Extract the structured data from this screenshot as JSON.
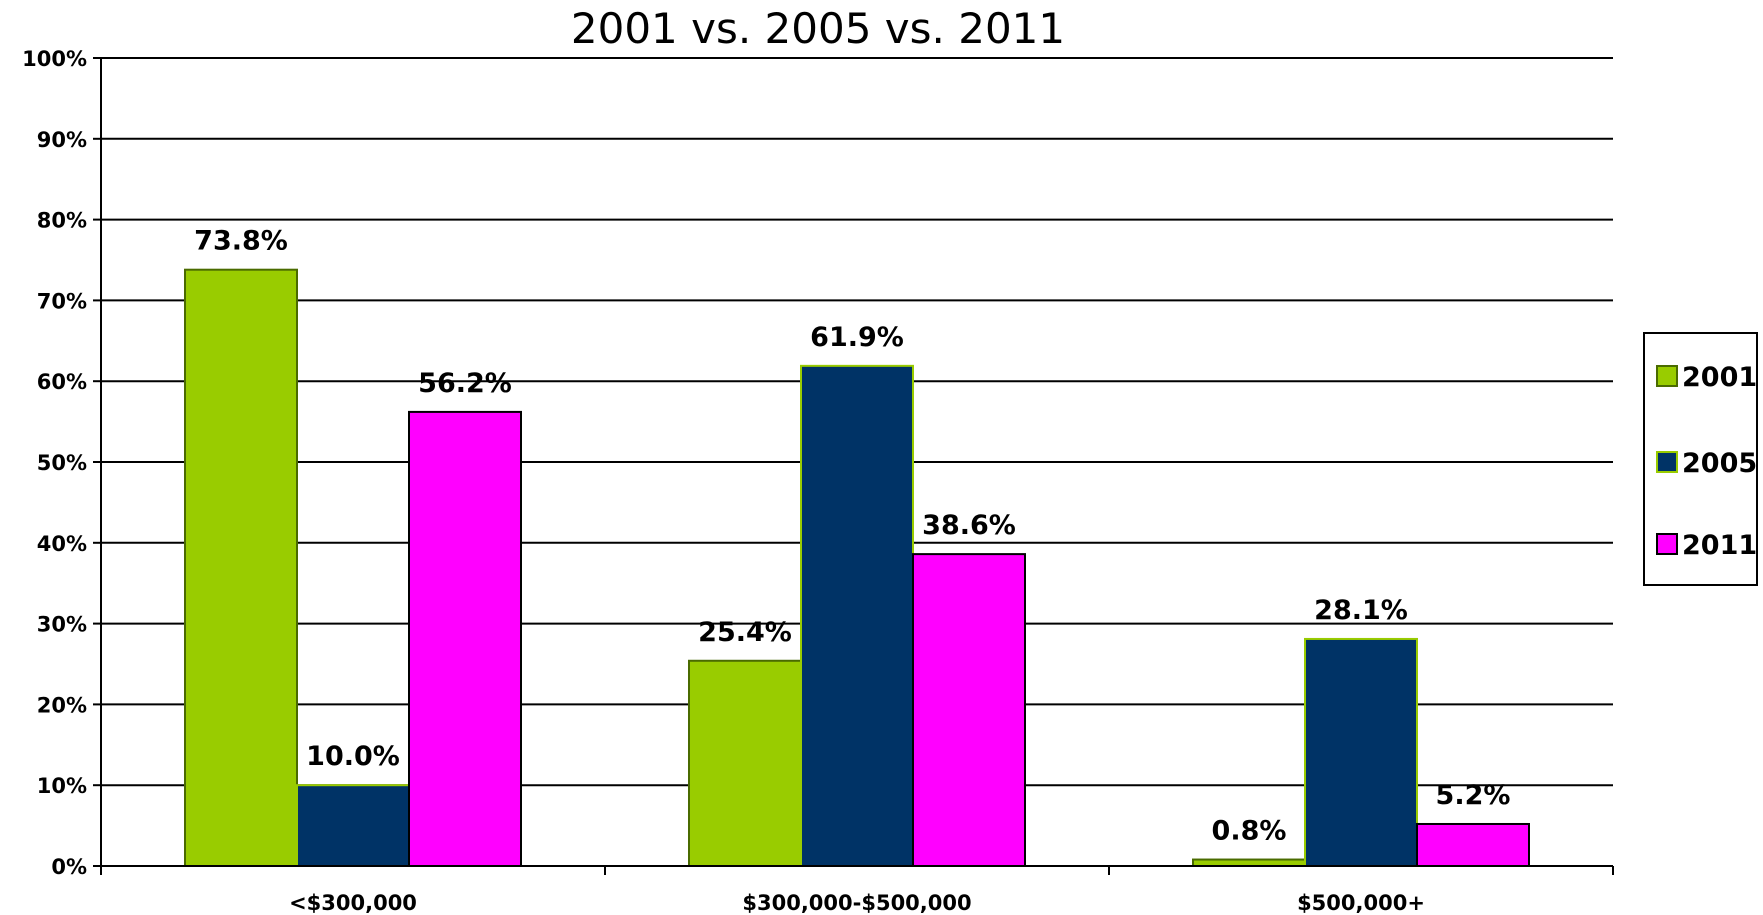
{
  "chart_data": {
    "type": "bar",
    "title": "2001 vs. 2005 vs. 2011",
    "xlabel": "",
    "ylabel": "",
    "ylim": [
      0,
      100
    ],
    "y_ticks": [
      "0%",
      "10%",
      "20%",
      "30%",
      "40%",
      "50%",
      "60%",
      "70%",
      "80%",
      "90%",
      "100%"
    ],
    "categories": [
      "<$300,000",
      "$300,000-$500,000",
      "$500,000+"
    ],
    "series": [
      {
        "name": "2001",
        "values": [
          73.8,
          25.4,
          0.8
        ],
        "labels": [
          "73.8%",
          "25.4%",
          "0.8%"
        ],
        "color": "#99cc00"
      },
      {
        "name": "2005",
        "values": [
          10.0,
          61.9,
          28.1
        ],
        "labels": [
          "10.0%",
          "61.9%",
          "28.1%"
        ],
        "color": "#003366"
      },
      {
        "name": "2011",
        "values": [
          56.2,
          38.6,
          5.2
        ],
        "labels": [
          "56.2%",
          "38.6%",
          "5.2%"
        ],
        "color": "#ff00ff"
      }
    ],
    "grid": true,
    "legend_position": "right"
  }
}
